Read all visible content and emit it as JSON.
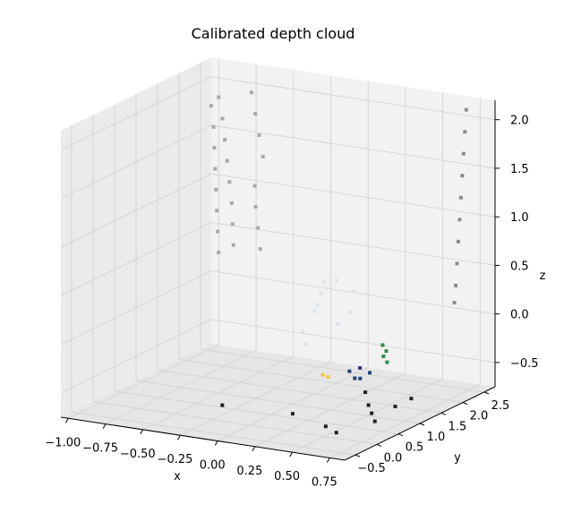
{
  "chart_data": {
    "type": "scatter",
    "projection": "3d",
    "title": "Calibrated depth cloud",
    "xlabel": "x",
    "ylabel": "y",
    "zlabel": "z",
    "xlim": [
      -1.05,
      0.85
    ],
    "ylim": [
      -0.75,
      2.75
    ],
    "zlim": [
      -0.75,
      2.2
    ],
    "xticks": [
      "−1.00",
      "−0.75",
      "−0.50",
      "−0.25",
      "0.00",
      "0.25",
      "0.50",
      "0.75"
    ],
    "xtick_values": [
      -1.0,
      -0.75,
      -0.5,
      -0.25,
      0.0,
      0.25,
      0.5,
      0.75
    ],
    "yticks": [
      "−0.5",
      "0.0",
      "0.5",
      "1.0",
      "1.5",
      "2.0",
      "2.5"
    ],
    "ytick_values": [
      -0.5,
      0.0,
      0.5,
      1.0,
      1.5,
      2.0,
      2.5
    ],
    "zticks": [
      "−0.5",
      "0.0",
      "0.5",
      "1.0",
      "1.5",
      "2.0"
    ],
    "ztick_values": [
      -0.5,
      0.0,
      0.5,
      1.0,
      1.5,
      2.0
    ],
    "grid": true,
    "point_color_map": "gray",
    "clusters": [
      {
        "label_shown": false,
        "color": "#a8a8a8",
        "points": [
          [
            -0.95,
            2.4,
            1.8
          ],
          [
            -0.92,
            2.35,
            1.6
          ],
          [
            -0.9,
            2.3,
            1.4
          ],
          [
            -0.88,
            2.25,
            1.2
          ],
          [
            -0.86,
            2.2,
            1.0
          ],
          [
            -0.84,
            2.15,
            0.8
          ],
          [
            -0.82,
            2.1,
            0.6
          ],
          [
            -0.8,
            2.05,
            0.4
          ],
          [
            -0.9,
            2.4,
            1.9
          ],
          [
            -0.86,
            2.35,
            1.7
          ],
          [
            -0.83,
            2.3,
            1.5
          ],
          [
            -0.8,
            2.25,
            1.3
          ],
          [
            -0.77,
            2.2,
            1.1
          ],
          [
            -0.74,
            2.15,
            0.9
          ],
          [
            -0.72,
            2.1,
            0.7
          ],
          [
            -0.7,
            2.05,
            0.5
          ],
          [
            -0.68,
            2.4,
            2.0
          ],
          [
            -0.64,
            2.35,
            1.8
          ],
          [
            -0.6,
            2.3,
            1.6
          ],
          [
            -0.56,
            2.25,
            1.4
          ],
          [
            -0.6,
            2.2,
            1.1
          ],
          [
            -0.58,
            2.15,
            0.9
          ],
          [
            -0.55,
            2.1,
            0.7
          ],
          [
            -0.52,
            2.05,
            0.5
          ]
        ]
      },
      {
        "label_shown": false,
        "color": "#8c8c8c",
        "points": [
          [
            0.7,
            2.6,
            2.1
          ],
          [
            0.72,
            2.5,
            1.9
          ],
          [
            0.74,
            2.4,
            1.7
          ],
          [
            0.76,
            2.3,
            1.5
          ],
          [
            0.78,
            2.2,
            1.3
          ],
          [
            0.8,
            2.1,
            1.1
          ],
          [
            0.82,
            2.0,
            0.9
          ],
          [
            0.84,
            1.9,
            0.7
          ],
          [
            0.86,
            1.8,
            0.5
          ],
          [
            0.88,
            1.7,
            0.35
          ]
        ]
      },
      {
        "label_shown": false,
        "color": "#dde3ea",
        "points": [
          [
            0.0,
            1.5,
            0.1
          ],
          [
            0.05,
            1.4,
            0.2
          ],
          [
            0.1,
            1.3,
            0.35
          ],
          [
            0.15,
            1.2,
            0.5
          ],
          [
            0.25,
            1.15,
            0.55
          ],
          [
            0.35,
            1.2,
            0.45
          ],
          [
            0.3,
            1.3,
            0.2
          ],
          [
            0.2,
            1.35,
            0.05
          ],
          [
            -0.05,
            1.4,
            -0.1
          ],
          [
            0.0,
            1.3,
            -0.2
          ]
        ]
      },
      {
        "label_shown": false,
        "color": "#23427a",
        "points": [
          [
            0.35,
            1.1,
            -0.35
          ],
          [
            0.4,
            1.05,
            -0.4
          ],
          [
            0.45,
            1.0,
            -0.38
          ],
          [
            0.5,
            1.05,
            -0.32
          ],
          [
            0.42,
            1.1,
            -0.3
          ]
        ]
      },
      {
        "label_shown": false,
        "color": "#2e8b57",
        "points": [
          [
            0.5,
            1.35,
            -0.1
          ],
          [
            0.52,
            1.3,
            -0.2
          ],
          [
            0.55,
            1.28,
            -0.25
          ],
          [
            0.53,
            1.33,
            -0.15
          ]
        ]
      },
      {
        "label_shown": false,
        "color": "#f5c542",
        "points": [
          [
            0.2,
            1.0,
            -0.4
          ],
          [
            0.23,
            1.02,
            -0.42
          ]
        ]
      },
      {
        "label_shown": false,
        "color": "#222222",
        "points": [
          [
            0.6,
            0.6,
            -0.4
          ],
          [
            0.65,
            0.5,
            -0.5
          ],
          [
            0.7,
            0.4,
            -0.55
          ],
          [
            0.75,
            0.3,
            -0.6
          ],
          [
            0.8,
            0.6,
            -0.5
          ],
          [
            0.45,
            0.2,
            -0.7
          ],
          [
            0.55,
            0.1,
            -0.72
          ],
          [
            -0.3,
            0.4,
            -0.7
          ],
          [
            0.2,
            0.3,
            -0.65
          ],
          [
            0.85,
            0.8,
            -0.45
          ]
        ]
      }
    ]
  }
}
